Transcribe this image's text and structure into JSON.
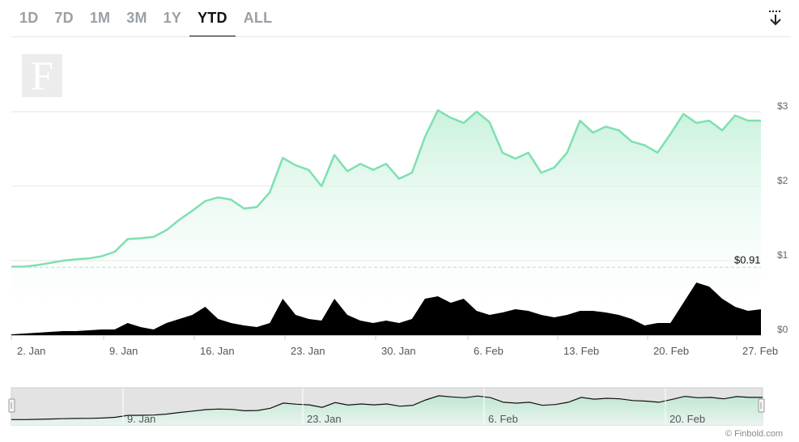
{
  "tabs": [
    {
      "label": "1D",
      "active": false
    },
    {
      "label": "7D",
      "active": false
    },
    {
      "label": "1M",
      "active": false
    },
    {
      "label": "3M",
      "active": false
    },
    {
      "label": "1Y",
      "active": false
    },
    {
      "label": "YTD",
      "active": true
    },
    {
      "label": "ALL",
      "active": false
    }
  ],
  "download_icon": "download-icon",
  "logo": {
    "letter": "F"
  },
  "credit": "© Finbold.com",
  "colors": {
    "line": "#7ee0b0",
    "fill_top": "#c9f2dd",
    "volume": "#000000",
    "navigator_bg": "#e3e3e3"
  },
  "chart_data": {
    "type": "area",
    "x_ticks": [
      "2. Jan",
      "9. Jan",
      "16. Jan",
      "23. Jan",
      "30. Jan",
      "6. Feb",
      "13. Feb",
      "20. Feb",
      "27. Feb"
    ],
    "y_ticks": [
      "$0",
      "$1",
      "$2",
      "$3"
    ],
    "ylim": [
      0,
      3.2
    ],
    "reference_label": "$0.91",
    "reference_value": 0.91,
    "price": {
      "x": [
        0,
        1,
        2,
        3,
        4,
        5,
        6,
        7,
        8,
        9,
        10,
        11,
        12,
        13,
        14,
        15,
        16,
        17,
        18,
        19,
        20,
        21,
        22,
        23,
        24,
        25,
        26,
        27,
        28,
        29,
        30,
        31,
        32,
        33,
        34,
        35,
        36,
        37,
        38,
        39,
        40,
        41,
        42,
        43,
        44,
        45,
        46,
        47,
        48,
        49,
        50,
        51,
        52,
        53,
        54,
        55,
        56,
        57,
        58
      ],
      "y": [
        0.92,
        0.92,
        0.94,
        0.97,
        1.0,
        1.02,
        1.03,
        1.06,
        1.12,
        1.29,
        1.3,
        1.32,
        1.41,
        1.55,
        1.67,
        1.8,
        1.85,
        1.82,
        1.7,
        1.72,
        1.92,
        2.38,
        2.28,
        2.22,
        2.0,
        2.42,
        2.2,
        2.3,
        2.22,
        2.3,
        2.1,
        2.18,
        2.66,
        3.02,
        2.92,
        2.85,
        3.0,
        2.86,
        2.45,
        2.37,
        2.45,
        2.18,
        2.25,
        2.45,
        2.88,
        2.72,
        2.8,
        2.75,
        2.6,
        2.55,
        2.45,
        2.7,
        2.97,
        2.85,
        2.88,
        2.75,
        2.95,
        2.88,
        2.88
      ]
    },
    "volume": {
      "x": [
        0,
        1,
        2,
        3,
        4,
        5,
        6,
        7,
        8,
        9,
        10,
        11,
        12,
        13,
        14,
        15,
        16,
        17,
        18,
        19,
        20,
        21,
        22,
        23,
        24,
        25,
        26,
        27,
        28,
        29,
        30,
        31,
        32,
        33,
        34,
        35,
        36,
        37,
        38,
        39,
        40,
        41,
        42,
        43,
        44,
        45,
        46,
        47,
        48,
        49,
        50,
        51,
        52,
        53,
        54,
        55,
        56,
        57,
        58
      ],
      "y": [
        0.01,
        0.02,
        0.03,
        0.04,
        0.05,
        0.05,
        0.06,
        0.07,
        0.07,
        0.15,
        0.1,
        0.07,
        0.15,
        0.2,
        0.25,
        0.35,
        0.2,
        0.15,
        0.12,
        0.1,
        0.15,
        0.45,
        0.25,
        0.2,
        0.18,
        0.45,
        0.25,
        0.18,
        0.15,
        0.18,
        0.15,
        0.2,
        0.45,
        0.48,
        0.4,
        0.45,
        0.3,
        0.25,
        0.28,
        0.32,
        0.3,
        0.25,
        0.22,
        0.25,
        0.3,
        0.3,
        0.28,
        0.25,
        0.2,
        0.12,
        0.15,
        0.15,
        0.4,
        0.65,
        0.6,
        0.45,
        0.35,
        0.3,
        0.32
      ]
    },
    "navigator_ticks": [
      "9. Jan",
      "23. Jan",
      "6. Feb",
      "20. Feb"
    ]
  }
}
